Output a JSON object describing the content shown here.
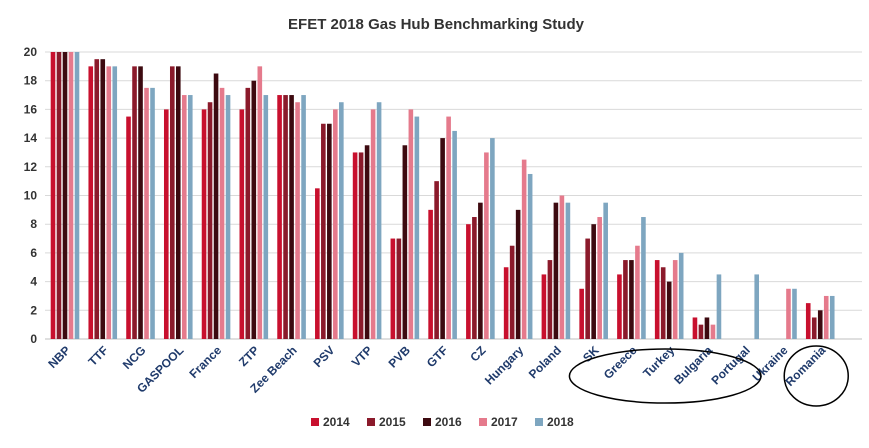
{
  "chart_data": {
    "type": "bar",
    "title": "EFET 2018 Gas Hub Benchmarking Study",
    "xlabel": "",
    "ylabel": "",
    "ylim": [
      0,
      20
    ],
    "yticks": [
      0,
      2,
      4,
      6,
      8,
      10,
      12,
      14,
      16,
      18,
      20
    ],
    "grid": true,
    "legend_position": "bottom",
    "categories": [
      "NBP",
      "TTF",
      "NCG",
      "GASPOOL",
      "France",
      "ZTP",
      "Zee Beach",
      "PSV",
      "VTP",
      "PVB",
      "GTF",
      "CZ",
      "Hungary",
      "Poland",
      "SK",
      "Greece",
      "Turkey",
      "Bulgaria",
      "Portugal",
      "Ukraine",
      "Romania"
    ],
    "series": [
      {
        "name": "2014",
        "color": "#c8102e",
        "values": [
          20,
          19,
          15.5,
          16,
          16,
          16,
          17,
          10.5,
          13,
          7,
          9,
          8,
          5,
          4.5,
          3.5,
          4.5,
          5.5,
          1.5,
          null,
          null,
          2.5
        ]
      },
      {
        "name": "2015",
        "color": "#8b1a2b",
        "values": [
          20,
          19.5,
          19,
          19,
          16.5,
          17.5,
          17,
          15,
          13,
          7,
          11,
          8.5,
          6.5,
          5.5,
          7,
          5.5,
          5,
          1,
          null,
          null,
          1.5
        ]
      },
      {
        "name": "2016",
        "color": "#3d0a10",
        "values": [
          20,
          19.5,
          19,
          19,
          18.5,
          18,
          17,
          15,
          13.5,
          13.5,
          14,
          9.5,
          9,
          9.5,
          8,
          5.5,
          4,
          1.5,
          null,
          null,
          2
        ]
      },
      {
        "name": "2017",
        "color": "#e57a8c",
        "values": [
          20,
          19,
          17.5,
          17,
          17.5,
          19,
          16.5,
          16,
          16,
          16,
          15.5,
          13,
          12.5,
          10,
          8.5,
          6.5,
          5.5,
          1,
          null,
          3.5,
          3
        ]
      },
      {
        "name": "2018",
        "color": "#7ea6c0",
        "values": [
          20,
          19,
          17.5,
          17,
          17,
          17,
          17,
          16.5,
          16.5,
          15.5,
          14.5,
          14,
          11.5,
          9.5,
          9.5,
          8.5,
          6,
          4.5,
          4.5,
          3.5,
          3
        ]
      }
    ],
    "annotations": [
      {
        "type": "ellipse",
        "around": [
          "Greece",
          "Turkey",
          "Bulgaria"
        ]
      },
      {
        "type": "ellipse",
        "around": [
          "Romania"
        ]
      }
    ]
  }
}
